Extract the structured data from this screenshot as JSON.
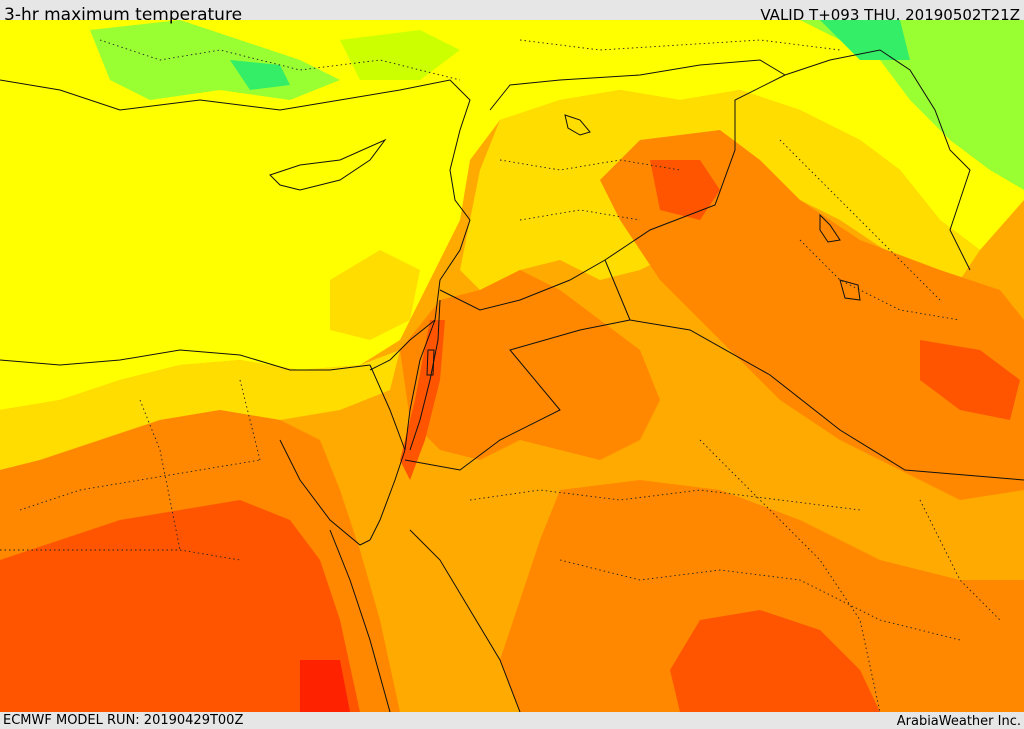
{
  "header": {
    "title": "3-hr maximum temperature",
    "valid": "VALID T+093 THU. 20190502T21Z"
  },
  "footer": {
    "model_run": "ECMWF MODEL RUN: 20190429T00Z",
    "credit": "ArabiaWeather Inc."
  },
  "palette": {
    "cool_green": "#33ee66",
    "light_green": "#99ff33",
    "yellow_green": "#ccff00",
    "yellow": "#ffff00",
    "gold": "#ffdd00",
    "light_orange": "#ffbb00",
    "orange": "#ffaa00",
    "dark_orange": "#ff8800",
    "red_orange": "#ff5500",
    "red": "#ff2200",
    "boundary": "#111111"
  }
}
